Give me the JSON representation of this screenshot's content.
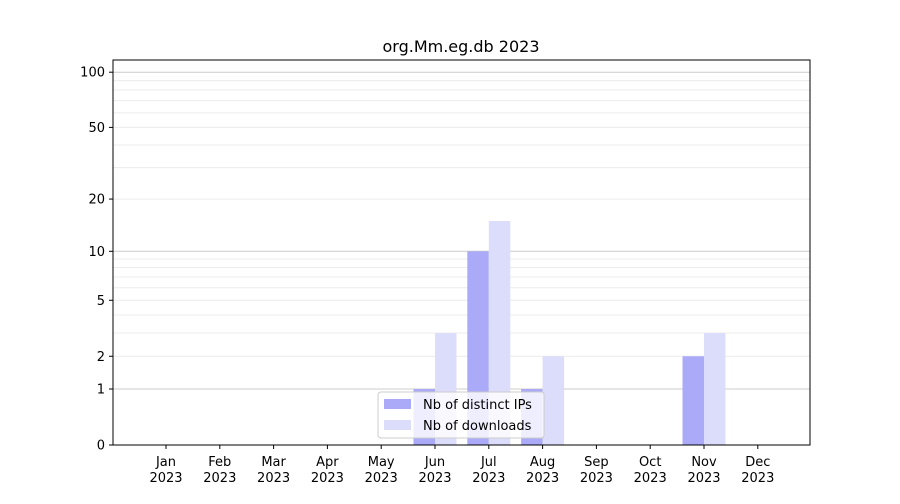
{
  "chart_data": {
    "type": "bar",
    "title": "org.Mm.eg.db 2023",
    "xlabel": "",
    "ylabel": "",
    "yscale": "symlog (log10(1+y))",
    "ylim": [
      0,
      110
    ],
    "yticks": [
      0,
      1,
      2,
      5,
      10,
      20,
      50,
      100
    ],
    "grid": true,
    "legend": "lower-center",
    "categories": [
      "Jan\n2023",
      "Feb\n2023",
      "Mar\n2023",
      "Apr\n2023",
      "May\n2023",
      "Jun\n2023",
      "Jul\n2023",
      "Aug\n2023",
      "Sep\n2023",
      "Oct\n2023",
      "Nov\n2023",
      "Dec\n2023"
    ],
    "series": [
      {
        "name": "Nb of distinct IPs",
        "color": "#aaaaf8",
        "values": [
          0,
          0,
          0,
          0,
          0,
          1,
          10,
          1,
          0,
          0,
          2,
          0
        ]
      },
      {
        "name": "Nb of downloads",
        "color": "#dcdcfb",
        "values": [
          0,
          0,
          0,
          0,
          0,
          3,
          15,
          2,
          0,
          0,
          3,
          0
        ]
      }
    ]
  }
}
